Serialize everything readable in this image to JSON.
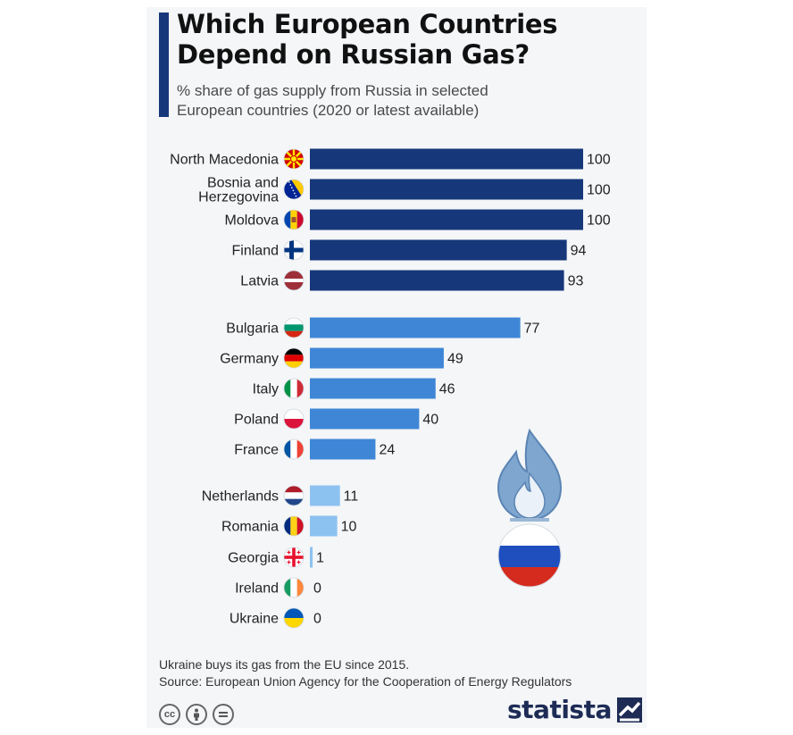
{
  "title_line1": "Which European Countries",
  "title_line2": "Depend on Russian Gas?",
  "subtitle_line1": "% share of gas supply from Russia in selected",
  "subtitle_line2": "European countries (2020 or latest available)",
  "footnote": "Ukraine buys its gas from the EU since 2015.",
  "source": "Source: European Union Agency for the Cooperation of Energy Regulators",
  "brand": "statista",
  "license_icons": [
    "cc-icon",
    "attribution-icon",
    "no-derivatives-icon"
  ],
  "colors": {
    "high": "#16387a",
    "medium": "#3f87d6",
    "low": "#8cc2f0",
    "accent": "#16387a"
  },
  "chart_data": {
    "type": "bar",
    "orientation": "horizontal",
    "title": "Which European Countries Depend on Russian Gas?",
    "subtitle": "% share of gas supply from Russia in selected European countries (2020 or latest available)",
    "xlim": [
      0,
      100
    ],
    "grid": false,
    "categories": [
      "North Macedonia",
      "Bosnia and Herzegovina",
      "Moldova",
      "Finland",
      "Latvia",
      "Bulgaria",
      "Germany",
      "Italy",
      "Poland",
      "France",
      "Netherlands",
      "Romania",
      "Georgia",
      "Ireland",
      "Ukraine"
    ],
    "labels": [
      [
        "North Macedonia"
      ],
      [
        "Bosnia and",
        "Herzegovina"
      ],
      [
        "Moldova"
      ],
      [
        "Finland"
      ],
      [
        "Latvia"
      ],
      [
        "Bulgaria"
      ],
      [
        "Germany"
      ],
      [
        "Italy"
      ],
      [
        "Poland"
      ],
      [
        "France"
      ],
      [
        "Netherlands"
      ],
      [
        "Romania"
      ],
      [
        "Georgia"
      ],
      [
        "Ireland"
      ],
      [
        "Ukraine"
      ]
    ],
    "values": [
      100,
      100,
      100,
      94,
      93,
      77,
      49,
      46,
      40,
      24,
      11,
      10,
      1,
      0,
      0
    ],
    "groups": [
      "high",
      "high",
      "high",
      "high",
      "high",
      "medium",
      "medium",
      "medium",
      "medium",
      "medium",
      "low",
      "low",
      "low",
      "low",
      "low"
    ],
    "flags": [
      "north-macedonia-flag-icon",
      "bosnia-flag-icon",
      "moldova-flag-icon",
      "finland-flag-icon",
      "latvia-flag-icon",
      "bulgaria-flag-icon",
      "germany-flag-icon",
      "italy-flag-icon",
      "poland-flag-icon",
      "france-flag-icon",
      "netherlands-flag-icon",
      "romania-flag-icon",
      "georgia-flag-icon",
      "ireland-flag-icon",
      "ukraine-flag-icon"
    ]
  }
}
